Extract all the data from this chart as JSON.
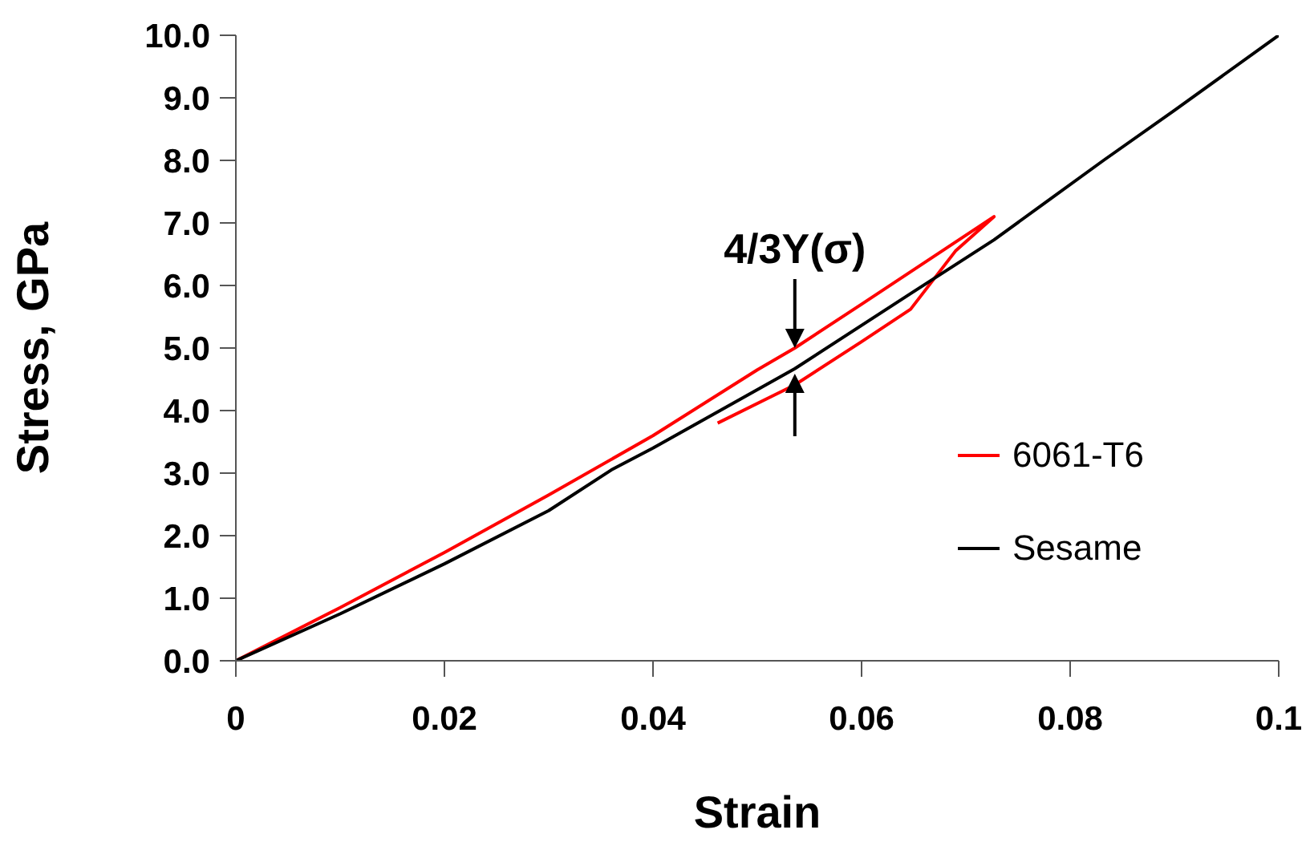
{
  "chart_data": {
    "type": "line",
    "xlabel": "Strain",
    "ylabel": "Stress, GPa",
    "xlim": [
      0,
      0.1
    ],
    "xticks": [
      0,
      0.02,
      0.04,
      0.06,
      0.08,
      0.1
    ],
    "ylim": [
      0,
      10
    ],
    "yticks": [
      {
        "value": 0,
        "label": "0.0"
      },
      {
        "value": 1,
        "label": "1.0"
      },
      {
        "value": 2,
        "label": "2.0"
      },
      {
        "value": 3,
        "label": "3.0"
      },
      {
        "value": 4,
        "label": "4.0"
      },
      {
        "value": 5,
        "label": "5.0"
      },
      {
        "value": 6,
        "label": "6.0"
      },
      {
        "value": 7,
        "label": "7.0"
      },
      {
        "value": 8,
        "label": "8.0"
      },
      {
        "value": 9,
        "label": "9.0"
      },
      {
        "value": 10,
        "label": "10.0"
      }
    ],
    "grid": false,
    "legend": "right",
    "marker": "none",
    "line_style": "solid",
    "series": [
      {
        "name": "6061-T6",
        "color": "#ff0000",
        "x": [
          0,
          0.01,
          0.02,
          0.03,
          0.04,
          0.05,
          0.0536,
          0.06,
          0.0727,
          0.069,
          0.0647,
          0.06,
          0.0536,
          0.0462
        ],
        "values": [
          0,
          0.85,
          1.73,
          2.65,
          3.6,
          4.65,
          5.0,
          5.7,
          7.1,
          6.55,
          5.62,
          5.1,
          4.41,
          3.8
        ]
      },
      {
        "name": "Sesame",
        "color": "#000000",
        "x": [
          0,
          0.01,
          0.02,
          0.03,
          0.036,
          0.04,
          0.0536,
          0.0647,
          0.0727,
          0.0832,
          0.09,
          0.1
        ],
        "values": [
          0,
          0.75,
          1.55,
          2.4,
          3.05,
          3.4,
          4.67,
          5.87,
          6.73,
          8.0,
          8.8,
          10.0
        ]
      }
    ],
    "annotations": [
      {
        "text": "4/3Y(σ)",
        "x": 0.0536,
        "y": 5.0
      }
    ]
  }
}
